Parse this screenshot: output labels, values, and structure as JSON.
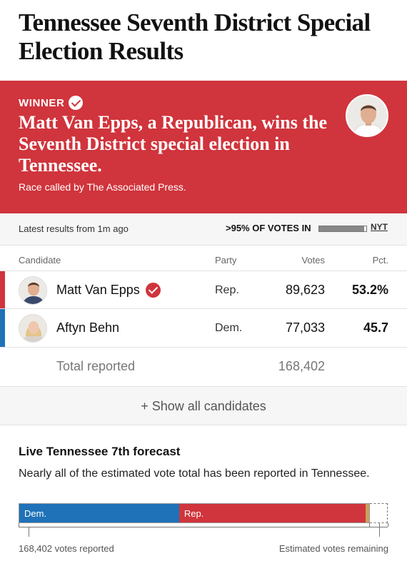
{
  "title": "Tennessee Seventh District Special Election Results",
  "winner": {
    "label": "WINNER",
    "headline": "Matt Van Epps, a Republican, wins the Seventh District special election in Tennessee.",
    "called_by": "Race called by The Associated Press."
  },
  "status": {
    "latest": "Latest results from 1m ago",
    "votes_in": ">95% OF VOTES IN",
    "votes_in_fraction": 0.95,
    "source": "NYT"
  },
  "table": {
    "headers": {
      "candidate": "Candidate",
      "party": "Party",
      "votes": "Votes",
      "pct": "Pct."
    },
    "rows": [
      {
        "name": "Matt Van Epps",
        "party": "Rep.",
        "votes": "89,623",
        "pct": "53.2%",
        "winner": true,
        "color": "#d0343c"
      },
      {
        "name": "Aftyn Behn",
        "party": "Dem.",
        "votes": "77,033",
        "pct": "45.7",
        "winner": false,
        "color": "#1f72b8"
      }
    ],
    "total_label": "Total reported",
    "total_votes": "168,402"
  },
  "show_all": "+ Show all candidates",
  "forecast": {
    "title": "Live Tennessee 7th forecast",
    "description": "Nearly all of the estimated vote total has been reported in Tennessee.",
    "dem_label": "Dem.",
    "rep_label": "Rep.",
    "dem_share": 0.457,
    "rep_share": 0.532,
    "reported_label": "168,402 votes reported",
    "remaining_label": "Estimated votes remaining"
  },
  "colors": {
    "rep": "#d0343c",
    "dem": "#1f72b8",
    "other": "#c9a15c"
  }
}
